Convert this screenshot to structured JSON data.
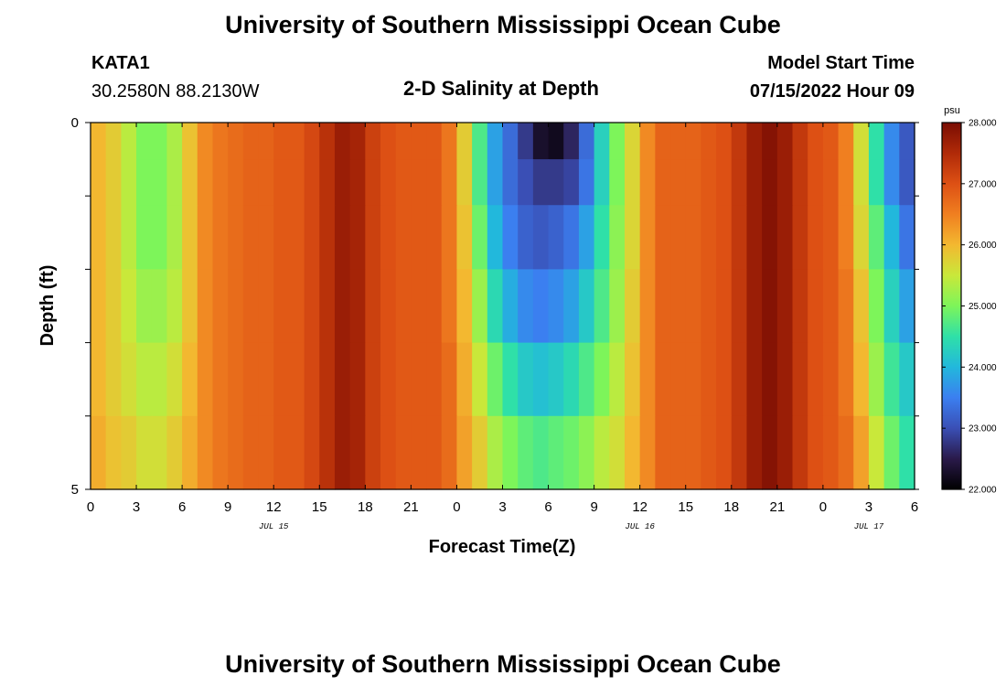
{
  "header": {
    "title": "University of Southern Mississippi Ocean Cube",
    "station": "KATA1",
    "coords": "30.2580N  88.2130W",
    "plot_title": "2-D Salinity at Depth",
    "model_start_label": "Model Start Time",
    "model_start_value": "07/15/2022 Hour 09"
  },
  "footer": {
    "title": "University of Southern Mississippi Ocean Cube"
  },
  "chart_data": {
    "type": "heatmap",
    "title": "2-D Salinity at Depth",
    "xlabel": "Forecast Time(Z)",
    "ylabel": "Depth (ft)",
    "x_range_hours": [
      0,
      54
    ],
    "y_range_ft": [
      0,
      5
    ],
    "x_tick_labels": [
      "0",
      "3",
      "6",
      "9",
      "12",
      "15",
      "18",
      "21",
      "0",
      "3",
      "6",
      "9",
      "12",
      "15",
      "18",
      "21",
      "0",
      "3",
      "6"
    ],
    "y_tick_labels": [
      "0",
      "5"
    ],
    "date_labels": [
      {
        "label": "JUL 15",
        "hour": 12
      },
      {
        "label": "JUL 16",
        "hour": 36
      },
      {
        "label": "JUL 17",
        "hour": 51
      }
    ],
    "colorbar": {
      "unit": "psu",
      "min": 22.0,
      "max": 28.0,
      "tick_labels": [
        "22.000",
        "23.000",
        "24.000",
        "25.000",
        "26.000",
        "27.000",
        "28.000"
      ],
      "colors": [
        "#000000",
        "#2a1a4a",
        "#3a4fb5",
        "#3b7ff0",
        "#22b8dc",
        "#2fe0a8",
        "#7df55a",
        "#c9e83a",
        "#f3b830",
        "#f07f20",
        "#dd5014",
        "#b02a08",
        "#7a0d03"
      ]
    },
    "depth_layers_ft": [
      0.25,
      0.75,
      1.5,
      2.5,
      3.5,
      4.5
    ],
    "time_hours": [
      0,
      1,
      2,
      3,
      4,
      5,
      6,
      7,
      8,
      9,
      10,
      11,
      12,
      13,
      14,
      15,
      16,
      17,
      18,
      19,
      20,
      21,
      22,
      23,
      24,
      25,
      26,
      27,
      28,
      29,
      30,
      31,
      32,
      33,
      34,
      35,
      36,
      37,
      38,
      39,
      40,
      41,
      42,
      43,
      44,
      45,
      46,
      47,
      48,
      49,
      50,
      51,
      52,
      53
    ],
    "salinity_psu": [
      [
        26.0,
        25.8,
        25.4,
        25.0,
        25.0,
        25.3,
        25.9,
        26.4,
        26.6,
        26.7,
        26.8,
        26.8,
        26.9,
        26.9,
        27.1,
        27.4,
        27.7,
        27.6,
        27.2,
        27.0,
        26.9,
        26.9,
        26.9,
        26.6,
        25.8,
        24.7,
        23.8,
        23.3,
        22.8,
        22.3,
        22.2,
        22.6,
        23.3,
        24.3,
        25.0,
        25.7,
        26.4,
        26.8,
        26.8,
        26.8,
        26.9,
        27.0,
        27.3,
        27.7,
        27.9,
        27.7,
        27.3,
        27.0,
        26.9,
        26.5,
        25.6,
        24.5,
        23.6,
        23.1
      ],
      [
        26.0,
        25.8,
        25.4,
        25.0,
        25.0,
        25.3,
        25.9,
        26.4,
        26.6,
        26.7,
        26.8,
        26.8,
        26.9,
        26.9,
        27.1,
        27.4,
        27.7,
        27.6,
        27.2,
        27.0,
        26.9,
        26.9,
        26.9,
        26.6,
        25.8,
        24.7,
        23.8,
        23.3,
        23.0,
        22.8,
        22.8,
        22.9,
        23.4,
        24.3,
        25.0,
        25.7,
        26.4,
        26.8,
        26.8,
        26.8,
        26.9,
        27.0,
        27.3,
        27.7,
        27.9,
        27.7,
        27.3,
        27.0,
        26.9,
        26.5,
        25.6,
        24.5,
        23.6,
        23.1
      ],
      [
        26.0,
        25.8,
        25.4,
        25.0,
        25.0,
        25.3,
        25.9,
        26.4,
        26.6,
        26.7,
        26.8,
        26.8,
        26.9,
        26.9,
        27.1,
        27.4,
        27.7,
        27.6,
        27.2,
        27.0,
        26.9,
        26.9,
        26.9,
        26.6,
        25.9,
        24.9,
        24.0,
        23.5,
        23.2,
        23.1,
        23.2,
        23.4,
        23.8,
        24.5,
        25.1,
        25.7,
        26.4,
        26.8,
        26.8,
        26.8,
        26.9,
        27.0,
        27.3,
        27.7,
        27.9,
        27.7,
        27.3,
        27.0,
        26.9,
        26.5,
        25.7,
        24.8,
        24.0,
        23.4
      ],
      [
        26.0,
        25.8,
        25.5,
        25.2,
        25.2,
        25.4,
        25.9,
        26.4,
        26.6,
        26.7,
        26.8,
        26.8,
        26.9,
        26.9,
        27.1,
        27.4,
        27.7,
        27.6,
        27.2,
        27.0,
        26.9,
        26.9,
        26.9,
        26.6,
        26.0,
        25.2,
        24.4,
        23.9,
        23.6,
        23.5,
        23.6,
        23.8,
        24.2,
        24.7,
        25.2,
        25.8,
        26.4,
        26.8,
        26.8,
        26.8,
        26.9,
        27.0,
        27.3,
        27.7,
        27.9,
        27.7,
        27.3,
        27.0,
        26.9,
        26.6,
        25.9,
        25.0,
        24.3,
        23.8
      ],
      [
        26.0,
        25.8,
        25.6,
        25.4,
        25.4,
        25.6,
        26.0,
        26.4,
        26.6,
        26.7,
        26.8,
        26.8,
        26.9,
        26.9,
        27.1,
        27.4,
        27.7,
        27.6,
        27.2,
        27.0,
        26.9,
        26.9,
        26.9,
        26.7,
        26.1,
        25.5,
        24.9,
        24.5,
        24.2,
        24.1,
        24.2,
        24.4,
        24.7,
        25.0,
        25.4,
        25.9,
        26.4,
        26.8,
        26.8,
        26.8,
        26.9,
        27.0,
        27.3,
        27.7,
        27.9,
        27.7,
        27.3,
        27.0,
        26.9,
        26.6,
        26.0,
        25.2,
        24.6,
        24.2
      ],
      [
        26.1,
        25.9,
        25.8,
        25.6,
        25.6,
        25.8,
        26.1,
        26.4,
        26.6,
        26.7,
        26.8,
        26.8,
        26.9,
        26.9,
        27.1,
        27.4,
        27.7,
        27.6,
        27.2,
        27.0,
        26.9,
        26.9,
        26.9,
        26.7,
        26.2,
        25.8,
        25.3,
        25.0,
        24.8,
        24.7,
        24.8,
        24.9,
        25.1,
        25.4,
        25.6,
        26.0,
        26.4,
        26.8,
        26.8,
        26.8,
        26.9,
        27.0,
        27.3,
        27.7,
        27.9,
        27.7,
        27.3,
        27.0,
        26.9,
        26.7,
        26.2,
        25.5,
        24.9,
        24.5
      ]
    ]
  }
}
